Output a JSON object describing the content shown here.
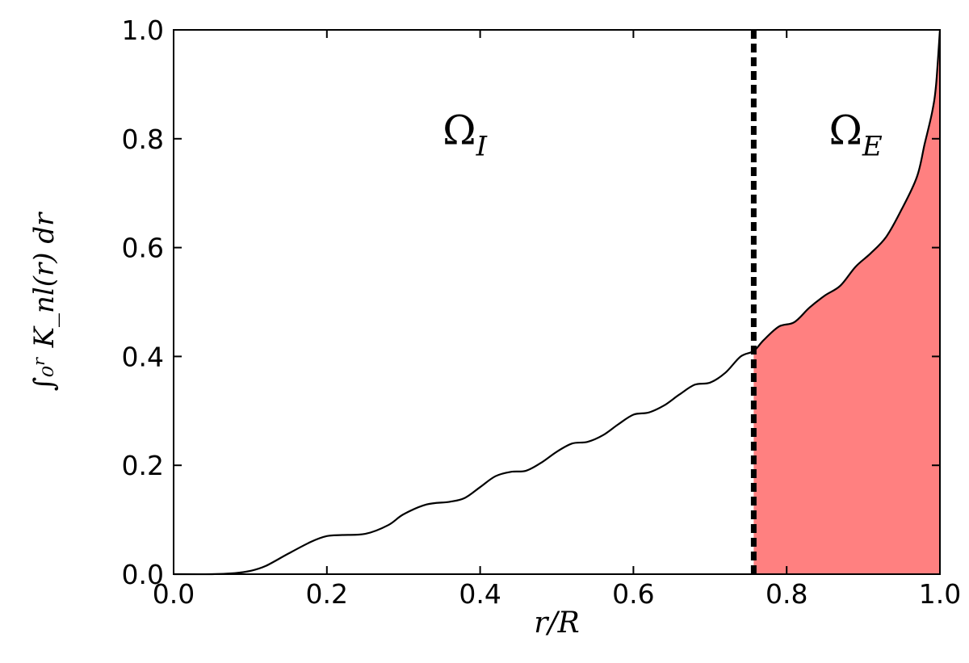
{
  "chart_data": {
    "type": "area",
    "xlabel": "r/R",
    "ylabel": "∫₀ʳ K_nl(r) dr",
    "xlim": [
      0.0,
      1.0
    ],
    "ylim": [
      0.0,
      1.0
    ],
    "x_ticks": [
      "0.0",
      "0.2",
      "0.4",
      "0.6",
      "0.8",
      "1.0"
    ],
    "y_ticks": [
      "0.0",
      "0.2",
      "0.4",
      "0.6",
      "0.8",
      "1.0"
    ],
    "grid": false,
    "boundary_x": 0.757,
    "fill_color": "#ff8080",
    "line_color": "#000000",
    "regions": [
      {
        "label": "Ω",
        "subscript": "I",
        "x": 0.38,
        "y": 0.82
      },
      {
        "label": "Ω",
        "subscript": "E",
        "x": 0.89,
        "y": 0.82
      }
    ],
    "series": [
      {
        "x": [
          0.0,
          0.05,
          0.08,
          0.1,
          0.12,
          0.15,
          0.18,
          0.2,
          0.22,
          0.25,
          0.28,
          0.3,
          0.33,
          0.36,
          0.38,
          0.4,
          0.42,
          0.44,
          0.46,
          0.48,
          0.5,
          0.52,
          0.54,
          0.56,
          0.58,
          0.6,
          0.62,
          0.64,
          0.66,
          0.68,
          0.7,
          0.72,
          0.74,
          0.757,
          0.77,
          0.79,
          0.81,
          0.83,
          0.85,
          0.87,
          0.89,
          0.91,
          0.93,
          0.95,
          0.97,
          0.98,
          0.99,
          0.995,
          1.0
        ],
        "y": [
          0.0,
          0.0,
          0.002,
          0.006,
          0.015,
          0.038,
          0.06,
          0.07,
          0.072,
          0.074,
          0.09,
          0.11,
          0.128,
          0.133,
          0.14,
          0.16,
          0.18,
          0.188,
          0.19,
          0.205,
          0.225,
          0.24,
          0.243,
          0.255,
          0.275,
          0.293,
          0.297,
          0.31,
          0.33,
          0.348,
          0.352,
          0.37,
          0.4,
          0.41,
          0.43,
          0.455,
          0.463,
          0.49,
          0.512,
          0.53,
          0.565,
          0.59,
          0.62,
          0.67,
          0.73,
          0.79,
          0.85,
          0.9,
          1.0
        ]
      }
    ]
  }
}
